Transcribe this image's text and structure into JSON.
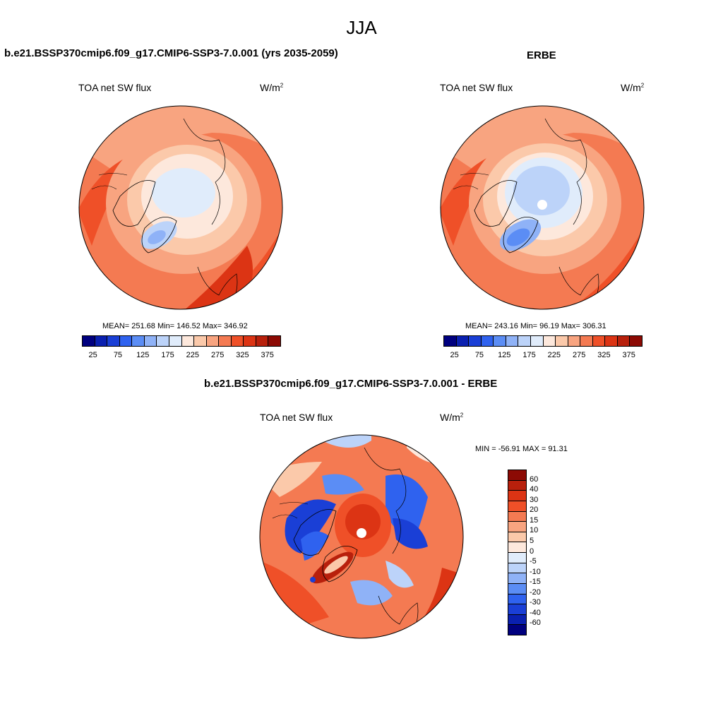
{
  "main_title": "JJA",
  "panel_left": {
    "title": "b.e21.BSSP370cmip6.f09_g17.CMIP6-SSP3-7.0.001 (yrs 2035-2059)",
    "variable": "TOA net SW flux",
    "units": "W/m",
    "units_sup": "2",
    "stats": "MEAN= 251.68  Min= 146.52  Max= 346.92"
  },
  "panel_right": {
    "title": "ERBE",
    "variable": "TOA net SW flux",
    "units": "W/m",
    "units_sup": "2",
    "stats": "MEAN= 243.16  Min=  96.19  Max= 306.31"
  },
  "panel_diff": {
    "title": "b.e21.BSSP370cmip6.f09_g17.CMIP6-SSP3-7.0.001 - ERBE",
    "variable": "TOA net SW flux",
    "units": "W/m",
    "units_sup": "2",
    "stats": "MIN = -56.91 MAX =  91.31"
  },
  "colorbar_abs": {
    "labels": [
      "25",
      "75",
      "125",
      "175",
      "225",
      "275",
      "325",
      "375"
    ],
    "colors": [
      "#00007f",
      "#0a20b0",
      "#1a3fd6",
      "#2f62ef",
      "#5b8df5",
      "#8fb2f7",
      "#bcd3f9",
      "#e0ecfb",
      "#fde8dc",
      "#fbc9aa",
      "#f8a480",
      "#f47a52",
      "#ef5028",
      "#dc3414",
      "#b8200c",
      "#8c0a04"
    ]
  },
  "colorbar_diff": {
    "labels": [
      "60",
      "40",
      "30",
      "20",
      "15",
      "10",
      "5",
      "0",
      "-5",
      "-10",
      "-15",
      "-20",
      "-30",
      "-40",
      "-60"
    ],
    "colors": [
      "#8c0a04",
      "#b8200c",
      "#dc3414",
      "#ef5028",
      "#f47a52",
      "#f8a480",
      "#fbc9aa",
      "#fde8dc",
      "#e0ecfb",
      "#bcd3f9",
      "#8fb2f7",
      "#5b8df5",
      "#2f62ef",
      "#1a3fd6",
      "#0a20b0",
      "#00007f"
    ]
  },
  "colors": {
    "background": "#ffffff",
    "text": "#000000",
    "coast": "#000000"
  }
}
